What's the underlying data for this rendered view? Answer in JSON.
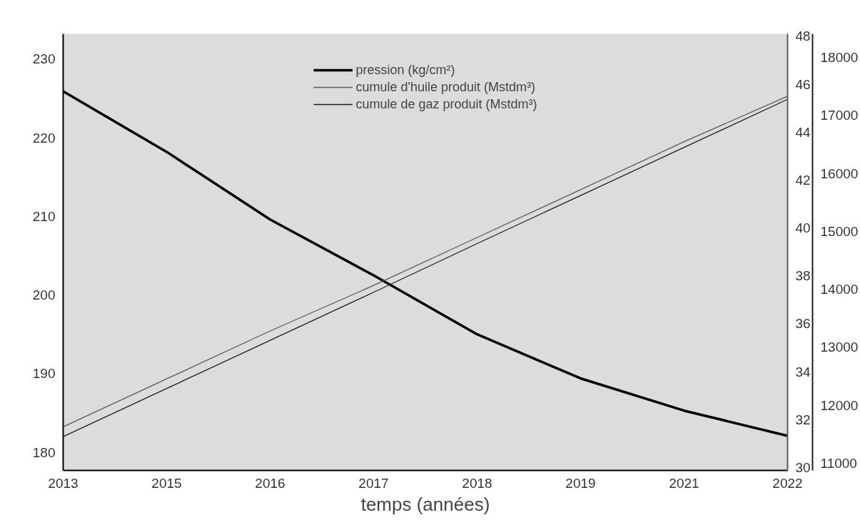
{
  "chart_data": {
    "type": "line",
    "xlabel": "temps (années)",
    "categories": [
      "2013",
      "2015",
      "2016",
      "2017",
      "2018",
      "2019",
      "2021",
      "2022"
    ],
    "ylim": [
      177.7,
      233.2
    ],
    "yticks": [
      180,
      190,
      200,
      210,
      220,
      230
    ],
    "y2lim": [
      29.88,
      48.1
    ],
    "y2ticks": [
      30,
      32,
      34,
      36,
      38,
      40,
      42,
      44,
      46,
      48
    ],
    "y3lim": [
      10876,
      18409
    ],
    "y3ticks": [
      11000,
      12000,
      13000,
      14000,
      15000,
      16000,
      17000,
      18000
    ],
    "grid": false,
    "legend": "top",
    "marker": "none",
    "series": [
      {
        "name": "pression (kg/cm²)",
        "color": "#000000",
        "values": [
          225.9,
          218.2,
          209.6,
          202.5,
          195.0,
          189.4,
          185.3,
          182.1
        ]
      },
      {
        "name": "cumule d'huile produit (Mstdm³)",
        "color": "#5a5a5a",
        "axis": "y2",
        "values": [
          31.7,
          33.7,
          35.7,
          37.6,
          39.6,
          41.6,
          43.6,
          45.5
        ]
      },
      {
        "name": "cumule de gaz produit (Mstdm³)",
        "color": "#1e1e1e",
        "axis": "y3",
        "values": [
          11460,
          12290,
          13120,
          13950,
          14790,
          15620,
          16450,
          17280
        ]
      }
    ]
  }
}
